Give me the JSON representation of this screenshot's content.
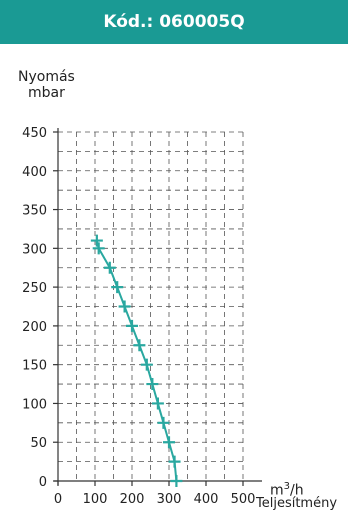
{
  "header": {
    "title": "Kód.: 060005Q"
  },
  "colors": {
    "header_bg": "#1a9a94",
    "series": "#2aa8a0",
    "axis": "#333333",
    "grid": "#555555"
  },
  "chart_data": {
    "type": "line",
    "ylabel_line1": "Nyomás",
    "ylabel_line2": "mbar",
    "xunit_base": "m",
    "xunit_exp": "3",
    "xunit_tail": "/h",
    "xlabel": "Teljesítmény",
    "xlim": [
      0,
      500
    ],
    "ylim": [
      0,
      450
    ],
    "x_ticks": [
      0,
      100,
      200,
      300,
      400,
      500
    ],
    "y_ticks": [
      0,
      50,
      100,
      150,
      200,
      250,
      300,
      350,
      400,
      450
    ],
    "grid": true,
    "grid_style": "dashed",
    "series": [
      {
        "x": [
          105,
          110,
          140,
          160,
          180,
          200,
          220,
          240,
          255,
          270,
          285,
          300,
          315,
          320
        ],
        "y": [
          310,
          300,
          275,
          250,
          225,
          200,
          175,
          150,
          125,
          100,
          75,
          50,
          25,
          0
        ]
      }
    ]
  }
}
